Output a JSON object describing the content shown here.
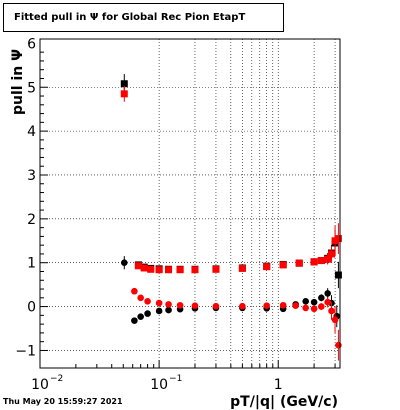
{
  "title": "Fitted pull in  Ψ  for Global Rec Pion EtapT",
  "footer": "Thu May 20 15:59:27 2021",
  "chart_data": {
    "type": "scatter",
    "title": "Fitted pull in  Ψ  for Global Rec Pion EtapT",
    "xlabel": "pT/|q| (GeV/c)",
    "ylabel": "pull in  Ψ",
    "xscale": "log",
    "xlim": [
      0.01,
      3.3
    ],
    "ylim": [
      -1.4,
      6.1
    ],
    "grid": true,
    "x_ticks": [
      {
        "v": 0.01,
        "t": "10"
      },
      {
        "v": 0.1,
        "t": "10"
      },
      {
        "v": 1,
        "t": "1"
      }
    ],
    "x_tick_exps": [
      "−2",
      "−1",
      ""
    ],
    "y_ticks": [
      -1,
      0,
      1,
      2,
      3,
      4,
      5,
      6
    ],
    "series": [
      {
        "color": "#000000",
        "marker": "square",
        "x": [
          0.051
        ],
        "y": [
          5.08
        ],
        "yerr": [
          0.22
        ]
      },
      {
        "color": "#ff0000",
        "marker": "square",
        "x": [
          0.051
        ],
        "y": [
          4.85
        ],
        "yerr": [
          0.18
        ]
      },
      {
        "color": "#000000",
        "marker": "square",
        "x": [
          0.067,
          0.075,
          0.085,
          0.1,
          0.12,
          0.15,
          0.2,
          0.3,
          0.5,
          0.8,
          1.1,
          1.5,
          2.0,
          2.3,
          2.6,
          2.8,
          3.0,
          3.2
        ],
        "y": [
          0.95,
          0.9,
          0.87,
          0.86,
          0.85,
          0.85,
          0.85,
          0.86,
          0.88,
          0.92,
          0.96,
          0.99,
          1.02,
          1.05,
          1.1,
          1.22,
          1.45,
          0.72
        ],
        "yerr": [
          0.06,
          0.04,
          0.03,
          0.03,
          0.02,
          0.02,
          0.02,
          0.02,
          0.02,
          0.03,
          0.03,
          0.04,
          0.06,
          0.08,
          0.12,
          0.18,
          0.3,
          0.3
        ]
      },
      {
        "color": "#ff0000",
        "marker": "square",
        "x": [
          0.067,
          0.075,
          0.085,
          0.1,
          0.12,
          0.15,
          0.2,
          0.3,
          0.5,
          0.8,
          1.1,
          1.5,
          2.0,
          2.3,
          2.6,
          2.8,
          3.0,
          3.2
        ],
        "y": [
          0.93,
          0.88,
          0.85,
          0.84,
          0.84,
          0.84,
          0.84,
          0.85,
          0.87,
          0.91,
          0.95,
          0.99,
          1.02,
          1.05,
          1.08,
          1.2,
          1.5,
          1.55
        ],
        "yerr": [
          0.05,
          0.04,
          0.03,
          0.02,
          0.02,
          0.02,
          0.02,
          0.02,
          0.02,
          0.03,
          0.03,
          0.04,
          0.06,
          0.08,
          0.12,
          0.18,
          0.35,
          0.35
        ]
      },
      {
        "color": "#000000",
        "marker": "circle",
        "x": [
          0.051,
          0.062,
          0.07,
          0.08,
          0.1,
          0.12,
          0.15,
          0.2,
          0.3,
          0.5,
          0.8,
          1.1,
          1.4,
          1.7,
          2.0,
          2.3,
          2.6,
          2.8,
          3.1
        ],
        "y": [
          1.0,
          -0.32,
          -0.23,
          -0.16,
          -0.1,
          -0.08,
          -0.06,
          -0.04,
          -0.03,
          -0.03,
          -0.04,
          -0.05,
          0.05,
          0.12,
          0.1,
          0.2,
          0.3,
          0.08,
          -0.22
        ],
        "yerr": [
          0.15,
          0.05,
          0.04,
          0.03,
          0.02,
          0.02,
          0.02,
          0.02,
          0.02,
          0.02,
          0.02,
          0.03,
          0.04,
          0.05,
          0.06,
          0.08,
          0.12,
          0.18,
          0.25
        ]
      },
      {
        "color": "#ff0000",
        "marker": "circle",
        "x": [
          0.062,
          0.07,
          0.08,
          0.1,
          0.12,
          0.15,
          0.2,
          0.3,
          0.5,
          0.8,
          1.1,
          1.4,
          1.7,
          2.0,
          2.3,
          2.6,
          2.8,
          3.0,
          3.2
        ],
        "y": [
          0.35,
          0.2,
          0.12,
          0.08,
          0.05,
          0.03,
          0.02,
          0.01,
          0.01,
          0.02,
          0.03,
          0.02,
          -0.03,
          -0.05,
          0.0,
          0.1,
          -0.1,
          -0.3,
          -0.88
        ],
        "yerr": [
          0.05,
          0.04,
          0.03,
          0.02,
          0.02,
          0.02,
          0.02,
          0.02,
          0.02,
          0.02,
          0.03,
          0.04,
          0.05,
          0.06,
          0.08,
          0.12,
          0.2,
          0.3,
          0.35
        ]
      }
    ]
  }
}
